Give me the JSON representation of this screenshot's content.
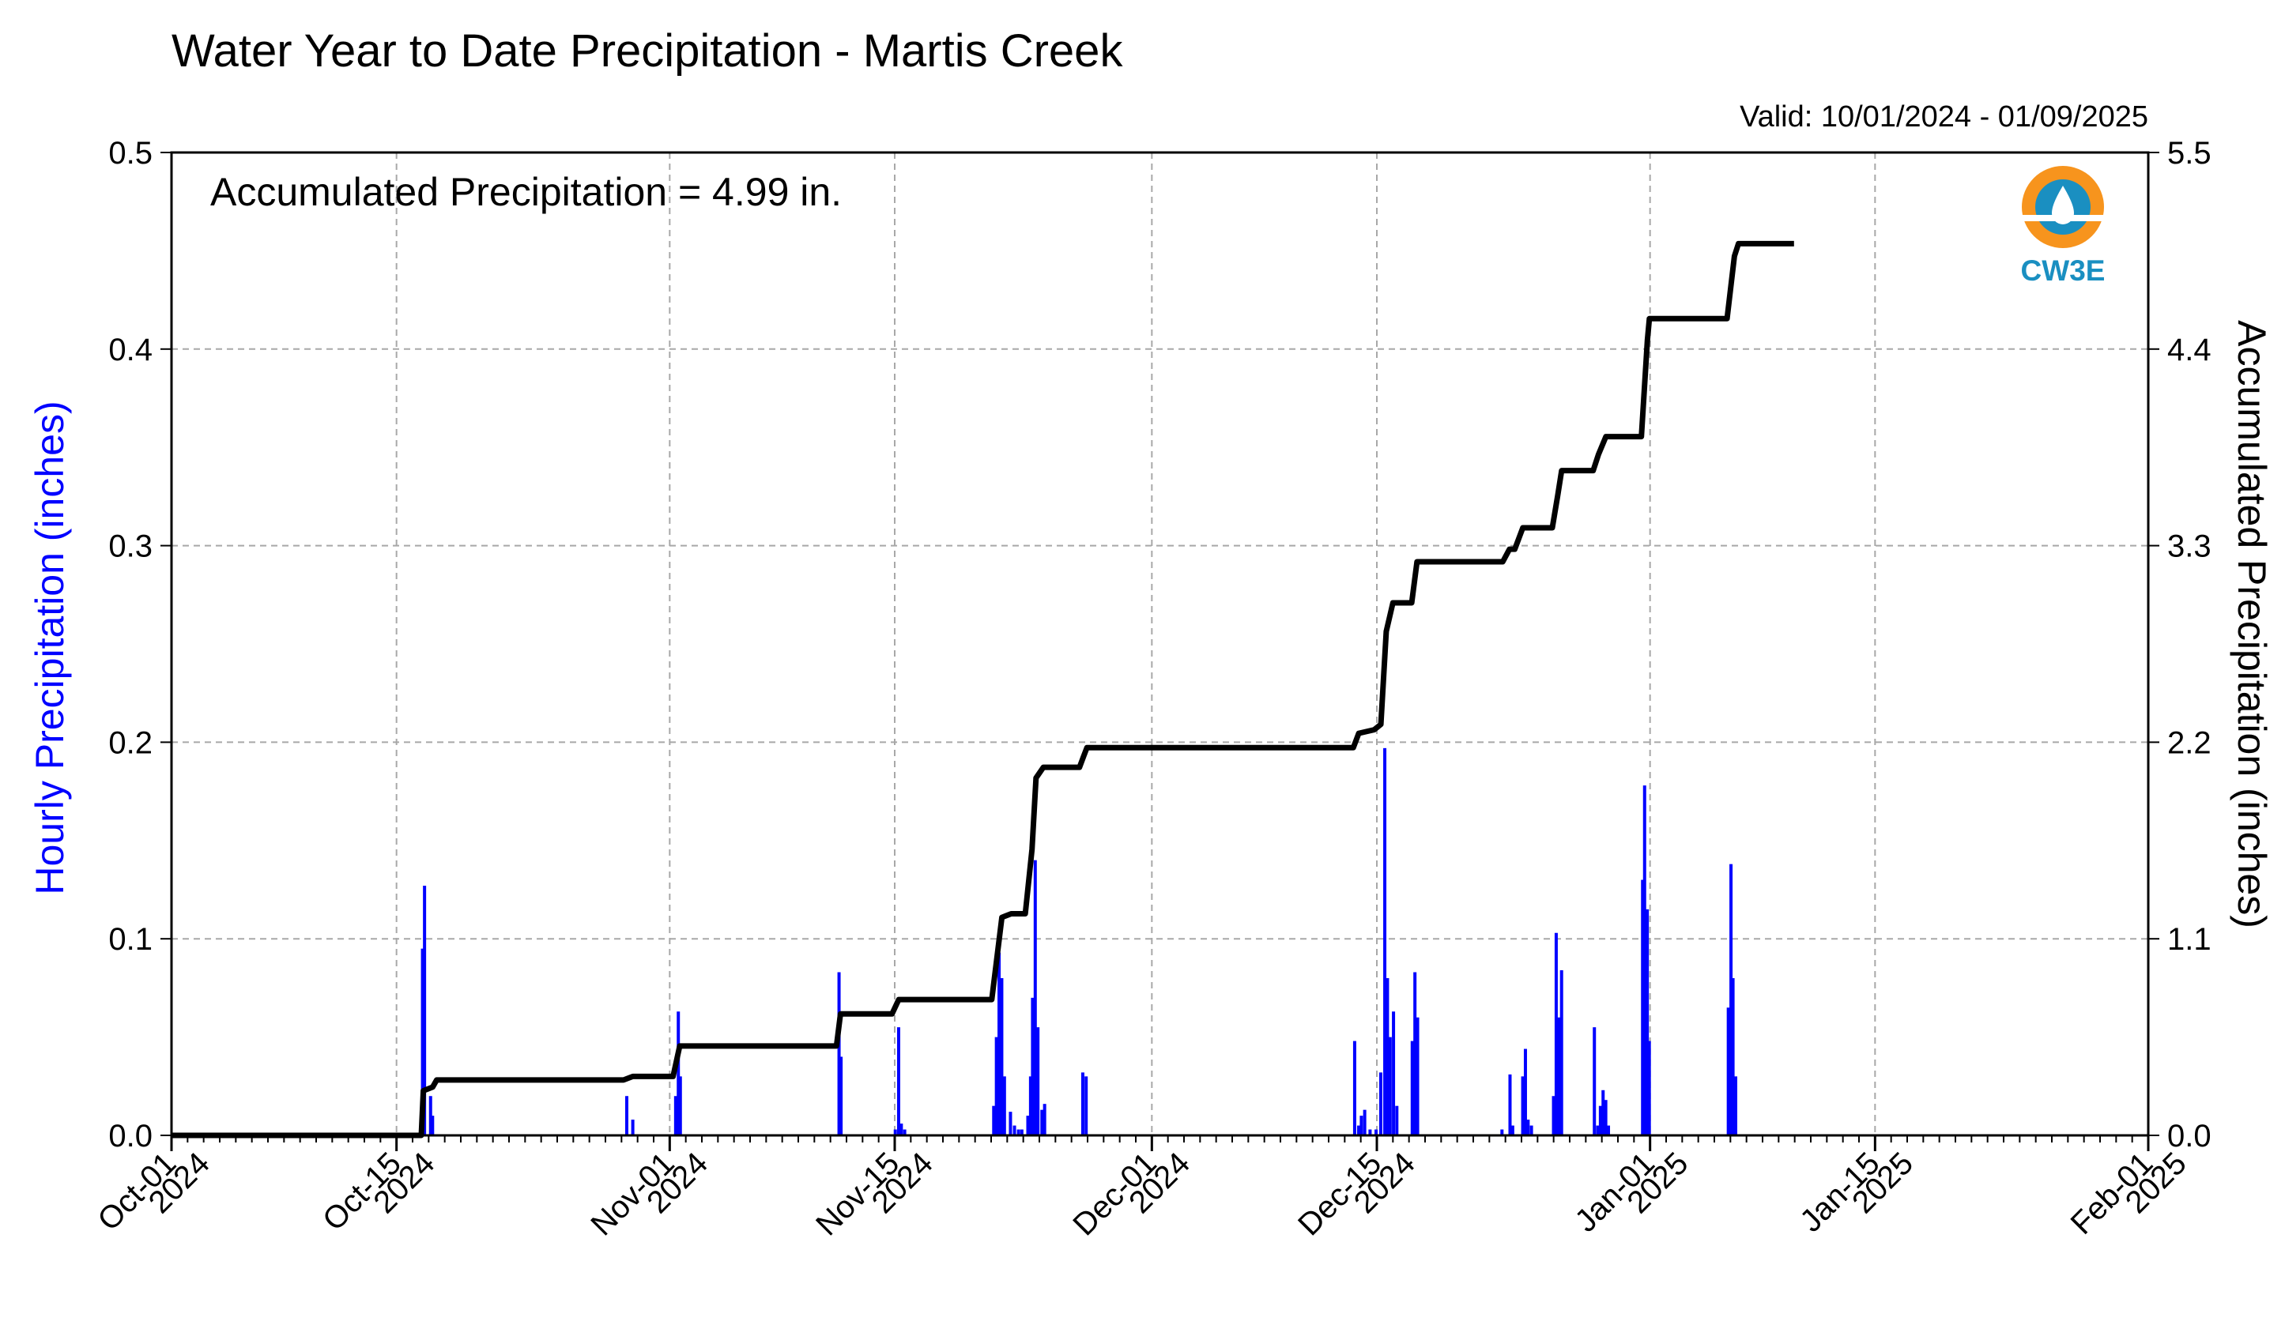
{
  "chart_data": {
    "type": "bar",
    "title": "Water Year to Date Precipitation - Martis Creek",
    "subtitle": "Valid: 10/01/2024 - 01/09/2025",
    "annotation": "Accumulated Precipitation = 4.99 in.",
    "logo_text": "CW3E",
    "ylabel_left": "Hourly Precipitation (inches)",
    "ylabel_right": "Accumulated Precipitation (inches)",
    "ylim_left": [
      0,
      0.5
    ],
    "ylim_right": [
      0,
      5.5
    ],
    "xlim": [
      "2024-10-01",
      "2025-02-01"
    ],
    "grid": true,
    "left_ticks": [
      "0.0",
      "0.1",
      "0.2",
      "0.3",
      "0.4",
      "0.5"
    ],
    "right_ticks": [
      "0.0",
      "1.1",
      "2.2",
      "3.3",
      "4.4",
      "5.5"
    ],
    "x_ticks": [
      {
        "date": "2024-10-01",
        "line1": "Oct-01",
        "line2": "2024"
      },
      {
        "date": "2024-10-15",
        "line1": "Oct-15",
        "line2": "2024"
      },
      {
        "date": "2024-11-01",
        "line1": "Nov-01",
        "line2": "2024"
      },
      {
        "date": "2024-11-15",
        "line1": "Nov-15",
        "line2": "2024"
      },
      {
        "date": "2024-12-01",
        "line1": "Dec-01",
        "line2": "2024"
      },
      {
        "date": "2024-12-15",
        "line1": "Dec-15",
        "line2": "2024"
      },
      {
        "date": "2025-01-01",
        "line1": "Jan-01",
        "line2": "2025"
      },
      {
        "date": "2025-01-15",
        "line1": "Jan-15",
        "line2": "2025"
      },
      {
        "date": "2025-02-01",
        "line1": "Feb-01",
        "line2": "2025"
      }
    ],
    "series": [
      {
        "name": "Hourly Precipitation",
        "kind": "bar",
        "color": "#0000ff",
        "points": [
          [
            "2024-10-16 14:00",
            0.095
          ],
          [
            "2024-10-16 17:00",
            0.127
          ],
          [
            "2024-10-17 02:00",
            0.02
          ],
          [
            "2024-10-17 05:00",
            0.01
          ],
          [
            "2024-10-29 07:00",
            0.02
          ],
          [
            "2024-10-29 16:00",
            0.008
          ],
          [
            "2024-11-01 08:00",
            0.02
          ],
          [
            "2024-11-01 12:00",
            0.063
          ],
          [
            "2024-11-01 15:00",
            0.03
          ],
          [
            "2024-11-11 12:00",
            0.083
          ],
          [
            "2024-11-11 15:00",
            0.04
          ],
          [
            "2024-11-15 00:00",
            0.003
          ],
          [
            "2024-11-15 05:00",
            0.055
          ],
          [
            "2024-11-15 09:00",
            0.006
          ],
          [
            "2024-11-15 14:00",
            0.003
          ],
          [
            "2024-11-21 03:00",
            0.015
          ],
          [
            "2024-11-21 07:00",
            0.05
          ],
          [
            "2024-11-21 11:00",
            0.093
          ],
          [
            "2024-11-21 15:00",
            0.08
          ],
          [
            "2024-11-21 19:00",
            0.03
          ],
          [
            "2024-11-22 04:00",
            0.012
          ],
          [
            "2024-11-22 10:00",
            0.005
          ],
          [
            "2024-11-22 16:00",
            0.003
          ],
          [
            "2024-11-22 21:00",
            0.003
          ],
          [
            "2024-11-23 06:00",
            0.01
          ],
          [
            "2024-11-23 10:00",
            0.03
          ],
          [
            "2024-11-23 13:00",
            0.07
          ],
          [
            "2024-11-23 17:00",
            0.14
          ],
          [
            "2024-11-23 21:00",
            0.055
          ],
          [
            "2024-11-24 03:00",
            0.013
          ],
          [
            "2024-11-24 07:00",
            0.016
          ],
          [
            "2024-11-26 16:00",
            0.032
          ],
          [
            "2024-11-26 21:00",
            0.03
          ],
          [
            "2024-12-13 14:00",
            0.048
          ],
          [
            "2024-12-13 20:00",
            0.005
          ],
          [
            "2024-12-14 00:00",
            0.01
          ],
          [
            "2024-12-14 05:00",
            0.013
          ],
          [
            "2024-12-14 13:00",
            0.003
          ],
          [
            "2024-12-14 22:00",
            0.003
          ],
          [
            "2024-12-15 05:00",
            0.032
          ],
          [
            "2024-12-15 11:00",
            0.197
          ],
          [
            "2024-12-15 15:00",
            0.08
          ],
          [
            "2024-12-15 19:00",
            0.05
          ],
          [
            "2024-12-16 00:00",
            0.063
          ],
          [
            "2024-12-16 05:00",
            0.015
          ],
          [
            "2024-12-17 04:00",
            0.048
          ],
          [
            "2024-12-17 08:00",
            0.083
          ],
          [
            "2024-12-17 12:00",
            0.06
          ],
          [
            "2024-12-22 18:00",
            0.003
          ],
          [
            "2024-12-23 06:00",
            0.031
          ],
          [
            "2024-12-23 10:00",
            0.005
          ],
          [
            "2024-12-24 01:00",
            0.03
          ],
          [
            "2024-12-24 05:00",
            0.044
          ],
          [
            "2024-12-24 09:00",
            0.008
          ],
          [
            "2024-12-24 14:00",
            0.005
          ],
          [
            "2024-12-25 23:00",
            0.02
          ],
          [
            "2024-12-26 03:00",
            0.103
          ],
          [
            "2024-12-26 07:00",
            0.06
          ],
          [
            "2024-12-26 11:00",
            0.084
          ],
          [
            "2024-12-28 12:00",
            0.055
          ],
          [
            "2024-12-28 17:00",
            0.005
          ],
          [
            "2024-12-28 21:00",
            0.015
          ],
          [
            "2024-12-29 01:00",
            0.023
          ],
          [
            "2024-12-29 05:00",
            0.018
          ],
          [
            "2024-12-29 09:00",
            0.005
          ],
          [
            "2024-12-31 12:00",
            0.13
          ],
          [
            "2024-12-31 15:00",
            0.178
          ],
          [
            "2024-12-31 19:00",
            0.115
          ],
          [
            "2024-12-31 22:00",
            0.048
          ],
          [
            "2025-01-05 20:00",
            0.065
          ],
          [
            "2025-01-06 00:00",
            0.138
          ],
          [
            "2025-01-06 03:00",
            0.08
          ],
          [
            "2025-01-06 07:00",
            0.03
          ]
        ]
      },
      {
        "name": "Accumulated Precipitation",
        "kind": "line",
        "color": "#000000",
        "points": [
          [
            "2024-10-01 00:00",
            0.0
          ],
          [
            "2024-10-16 13:00",
            0.0
          ],
          [
            "2024-10-16 16:00",
            0.25
          ],
          [
            "2024-10-17 06:00",
            0.27
          ],
          [
            "2024-10-17 12:00",
            0.31
          ],
          [
            "2024-10-29 03:00",
            0.31
          ],
          [
            "2024-10-29 17:00",
            0.33
          ],
          [
            "2024-11-01 05:00",
            0.33
          ],
          [
            "2024-11-01 15:00",
            0.5
          ],
          [
            "2024-11-11 09:00",
            0.5
          ],
          [
            "2024-11-11 15:00",
            0.68
          ],
          [
            "2024-11-14 20:00",
            0.68
          ],
          [
            "2024-11-15 06:00",
            0.76
          ],
          [
            "2024-11-21 01:00",
            0.76
          ],
          [
            "2024-11-21 16:00",
            1.22
          ],
          [
            "2024-11-22 06:00",
            1.24
          ],
          [
            "2024-11-23 03:00",
            1.24
          ],
          [
            "2024-11-23 13:00",
            1.6
          ],
          [
            "2024-11-23 19:00",
            2.0
          ],
          [
            "2024-11-24 06:00",
            2.06
          ],
          [
            "2024-11-26 12:00",
            2.06
          ],
          [
            "2024-11-26 18:00",
            2.12
          ],
          [
            "2024-11-26 23:00",
            2.17
          ],
          [
            "2024-12-13 13:00",
            2.17
          ],
          [
            "2024-12-13 21:00",
            2.25
          ],
          [
            "2024-12-14 20:00",
            2.27
          ],
          [
            "2024-12-15 06:00",
            2.3
          ],
          [
            "2024-12-15 14:00",
            2.82
          ],
          [
            "2024-12-16 00:00",
            2.98
          ],
          [
            "2024-12-17 04:00",
            2.98
          ],
          [
            "2024-12-17 12:00",
            3.21
          ],
          [
            "2024-12-22 20:00",
            3.21
          ],
          [
            "2024-12-23 06:00",
            3.28
          ],
          [
            "2024-12-23 14:00",
            3.28
          ],
          [
            "2024-12-24 02:00",
            3.4
          ],
          [
            "2024-12-25 22:00",
            3.4
          ],
          [
            "2024-12-26 06:00",
            3.58
          ],
          [
            "2024-12-26 12:00",
            3.72
          ],
          [
            "2024-12-28 11:00",
            3.72
          ],
          [
            "2024-12-28 19:00",
            3.81
          ],
          [
            "2024-12-29 06:00",
            3.91
          ],
          [
            "2024-12-31 11:00",
            3.91
          ],
          [
            "2024-12-31 20:00",
            4.45
          ],
          [
            "2024-12-31 23:00",
            4.57
          ],
          [
            "2025-01-05 19:00",
            4.57
          ],
          [
            "2025-01-06 06:00",
            4.92
          ],
          [
            "2025-01-06 12:00",
            4.99
          ],
          [
            "2025-01-09 23:00",
            4.99
          ]
        ]
      }
    ]
  },
  "colors": {
    "accumulated_line": "#000000",
    "hourly_bars": "#0000ff",
    "left_axis_label": "#0000ff",
    "grid": "#a8a8a8",
    "logo_orange": "#f7941d",
    "logo_blue": "#1a8fc1"
  }
}
